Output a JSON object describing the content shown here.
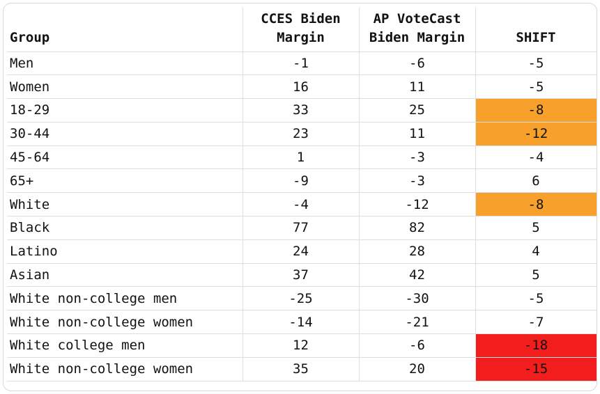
{
  "headers": {
    "group": "Group",
    "cces_line1": "CCES Biden",
    "cces_line2": "Margin",
    "ap_line1": "AP VoteCast",
    "ap_line2": "Biden Margin",
    "shift": "SHIFT"
  },
  "colors": {
    "orange_highlight": "#f7a12c",
    "red_highlight": "#f21d1d"
  },
  "rows": [
    {
      "group": "Men",
      "cces": "-1",
      "ap": "-6",
      "shift": "-5",
      "highlight": "none"
    },
    {
      "group": "Women",
      "cces": "16",
      "ap": "11",
      "shift": "-5",
      "highlight": "none"
    },
    {
      "group": "18-29",
      "cces": "33",
      "ap": "25",
      "shift": "-8",
      "highlight": "orange"
    },
    {
      "group": "30-44",
      "cces": "23",
      "ap": "11",
      "shift": "-12",
      "highlight": "orange"
    },
    {
      "group": "45-64",
      "cces": "1",
      "ap": "-3",
      "shift": "-4",
      "highlight": "none"
    },
    {
      "group": "65+",
      "cces": "-9",
      "ap": "-3",
      "shift": "6",
      "highlight": "none"
    },
    {
      "group": "White",
      "cces": "-4",
      "ap": "-12",
      "shift": "-8",
      "highlight": "orange"
    },
    {
      "group": "Black",
      "cces": "77",
      "ap": "82",
      "shift": "5",
      "highlight": "none"
    },
    {
      "group": "Latino",
      "cces": "24",
      "ap": "28",
      "shift": "4",
      "highlight": "none"
    },
    {
      "group": "Asian",
      "cces": "37",
      "ap": "42",
      "shift": "5",
      "highlight": "none"
    },
    {
      "group": "White non-college men",
      "cces": "-25",
      "ap": "-30",
      "shift": "-5",
      "highlight": "none"
    },
    {
      "group": "White non-college women",
      "cces": "-14",
      "ap": "-21",
      "shift": "-7",
      "highlight": "none"
    },
    {
      "group": "White college men",
      "cces": "12",
      "ap": "-6",
      "shift": "-18",
      "highlight": "red"
    },
    {
      "group": "White non-college women",
      "cces": "35",
      "ap": "20",
      "shift": "-15",
      "highlight": "red"
    }
  ]
}
